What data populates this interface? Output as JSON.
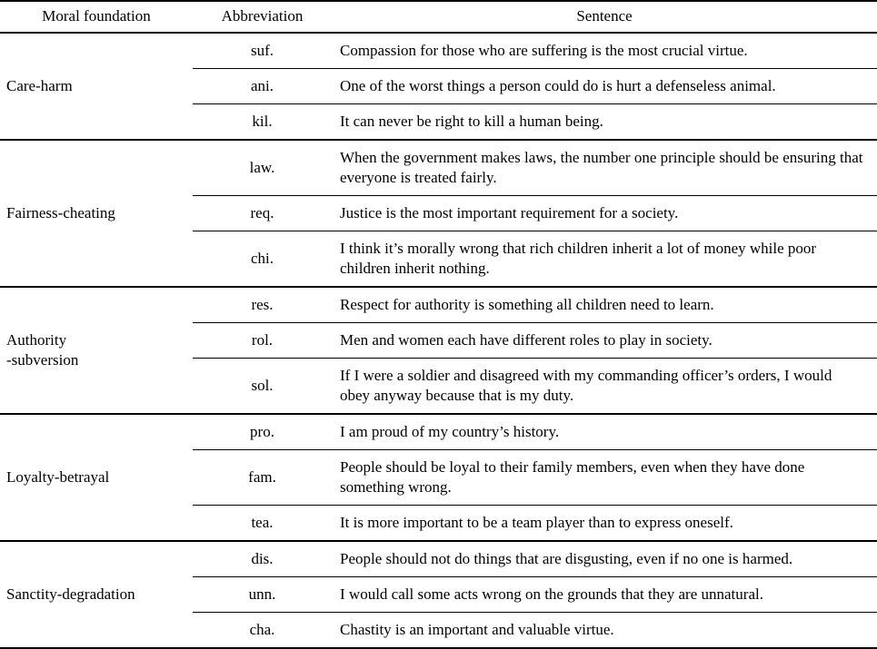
{
  "table": {
    "columns": [
      "Moral foundation",
      "Abbreviation",
      "Sentence"
    ],
    "groups": [
      {
        "foundation": "Care-harm",
        "rows": [
          {
            "abbr": "suf.",
            "sentence": "Compassion for those who are suffering is the most crucial virtue."
          },
          {
            "abbr": "ani.",
            "sentence": "One of the worst things a person could do is hurt a defenseless animal."
          },
          {
            "abbr": "kil.",
            "sentence": "It can never be right to kill a human being."
          }
        ]
      },
      {
        "foundation": "Fairness-cheating",
        "rows": [
          {
            "abbr": "law.",
            "sentence": "When the government makes laws, the number one principle should be ensuring that everyone is treated fairly."
          },
          {
            "abbr": "req.",
            "sentence": "Justice is the most important requirement for a society."
          },
          {
            "abbr": "chi.",
            "sentence": "I think it’s morally wrong that rich children inherit a lot of money while poor children inherit nothing."
          }
        ]
      },
      {
        "foundation": "Authority\n-subversion",
        "rows": [
          {
            "abbr": "res.",
            "sentence": "Respect for authority is something all children need to learn."
          },
          {
            "abbr": "rol.",
            "sentence": "Men and women each have different roles to play in society."
          },
          {
            "abbr": "sol.",
            "sentence": "If I were a soldier and disagreed with my commanding officer’s orders, I would obey anyway because that is my duty."
          }
        ]
      },
      {
        "foundation": "Loyalty-betrayal",
        "rows": [
          {
            "abbr": "pro.",
            "sentence": "I am proud of my country’s history."
          },
          {
            "abbr": "fam.",
            "sentence": "People should be loyal to their family members, even when they have done something wrong."
          },
          {
            "abbr": "tea.",
            "sentence": "It is more important to be a team player than to express oneself."
          }
        ]
      },
      {
        "foundation": "Sanctity-degradation",
        "rows": [
          {
            "abbr": "dis.",
            "sentence": "People should not do things that are disgusting, even if no one is harmed."
          },
          {
            "abbr": "unn.",
            "sentence": "I would call some acts wrong on the grounds that they are unnatural."
          },
          {
            "abbr": "cha.",
            "sentence": "Chastity is an important and valuable virtue."
          }
        ]
      }
    ]
  }
}
